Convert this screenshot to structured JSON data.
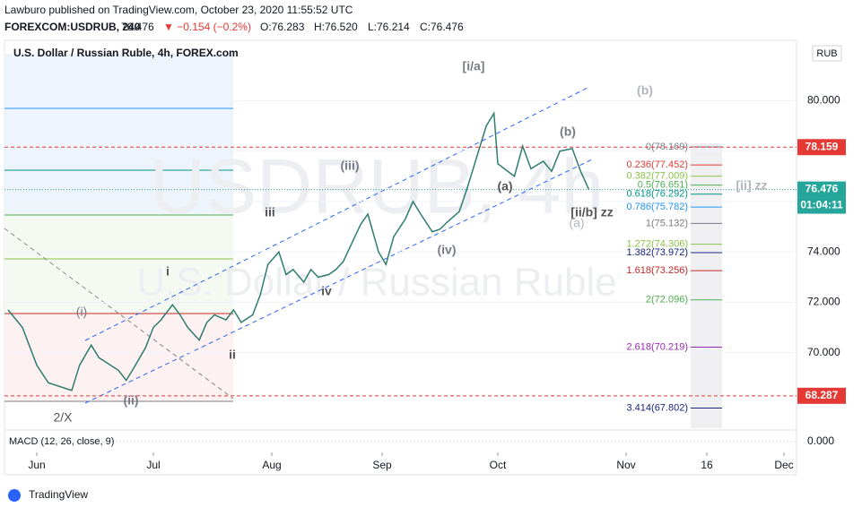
{
  "header": {
    "author": "Lawburo published on TradingView.com, October 23, 2020 11:55:52 UTC",
    "symbol": "FOREXCOM:USDRUB, 240",
    "last": "76.476",
    "change": "▼ −0.154 (−0.2%)",
    "open": "O:76.283",
    "high": "H:76.520",
    "low": "L:76.214",
    "close": "C:76.476"
  },
  "footer": {
    "brand": "TradingView"
  },
  "chart_data": {
    "type": "line",
    "title": "U.S. Dollar / Russian Ruble, 4h, FOREX.com",
    "watermark": "USDRUB, 4h",
    "watermark_sub": "U.S. Dollar / Russian Ruble",
    "currency": "RUB",
    "x": [
      "2020-05-24",
      "2020-05-28",
      "2020-06-01",
      "2020-06-04",
      "2020-06-08",
      "2020-06-10",
      "2020-06-12",
      "2020-06-15",
      "2020-06-17",
      "2020-06-19",
      "2020-06-22",
      "2020-06-24",
      "2020-06-26",
      "2020-06-29",
      "2020-07-01",
      "2020-07-03",
      "2020-07-06",
      "2020-07-08",
      "2020-07-10",
      "2020-07-13",
      "2020-07-15",
      "2020-07-17",
      "2020-07-20",
      "2020-07-22",
      "2020-07-24",
      "2020-07-27",
      "2020-07-29",
      "2020-07-31",
      "2020-08-03",
      "2020-08-05",
      "2020-08-07",
      "2020-08-10",
      "2020-08-12",
      "2020-08-14",
      "2020-08-17",
      "2020-08-19",
      "2020-08-21",
      "2020-08-24",
      "2020-08-26",
      "2020-08-28",
      "2020-08-31",
      "2020-09-02",
      "2020-09-04",
      "2020-09-07",
      "2020-09-09",
      "2020-09-11",
      "2020-09-14",
      "2020-09-16",
      "2020-09-18",
      "2020-09-21",
      "2020-09-23",
      "2020-09-25",
      "2020-09-28",
      "2020-09-30",
      "2020-10-01",
      "2020-10-05",
      "2020-10-07",
      "2020-10-09",
      "2020-10-12",
      "2020-10-14",
      "2020-10-16",
      "2020-10-19",
      "2020-10-21",
      "2020-10-23"
    ],
    "series": [
      {
        "name": "USDRUB",
        "color": "#2e7d6e",
        "values": [
          71.7,
          71.0,
          69.5,
          68.8,
          68.6,
          68.5,
          69.5,
          70.3,
          69.8,
          69.6,
          69.3,
          68.9,
          69.4,
          70.2,
          71.0,
          71.3,
          71.9,
          71.5,
          71.0,
          70.5,
          71.2,
          71.5,
          71.3,
          71.7,
          71.2,
          71.5,
          72.3,
          73.5,
          74.0,
          73.1,
          73.3,
          72.8,
          73.3,
          73.0,
          73.1,
          73.3,
          73.6,
          74.5,
          75.1,
          75.5,
          74.0,
          73.5,
          74.6,
          75.3,
          76.0,
          75.5,
          74.8,
          74.9,
          75.2,
          75.6,
          76.5,
          77.5,
          79.0,
          79.5,
          77.5,
          77.0,
          78.2,
          77.3,
          77.6,
          77.2,
          78.0,
          78.1,
          77.2,
          76.476
        ]
      }
    ],
    "xlim": [
      "2020-05-23",
      "2020-12-04"
    ],
    "xticks": [
      {
        "value": "2020-06-01",
        "label": "Jun"
      },
      {
        "value": "2020-07-01",
        "label": "Jul"
      },
      {
        "value": "2020-08-01",
        "label": "Aug"
      },
      {
        "value": "2020-09-01",
        "label": "Sep"
      },
      {
        "value": "2020-10-01",
        "label": "Oct"
      },
      {
        "value": "2020-11-01",
        "label": "Nov"
      },
      {
        "value": "2020-11-16",
        "label": "16"
      },
      {
        "value": "2020-12-01",
        "label": "Dec"
      }
    ],
    "ylim": [
      67,
      82.4
    ],
    "yticks": [
      {
        "value": 70,
        "label": "70.000"
      },
      {
        "value": 72,
        "label": "72.000"
      },
      {
        "value": 74,
        "label": "74.000"
      },
      {
        "value": 76,
        "label": "76.000"
      },
      {
        "value": 78,
        "label": "78.000"
      },
      {
        "value": 80,
        "label": "80.000"
      }
    ],
    "price_lines": [
      {
        "value": 78.159,
        "color": "#e53935"
      },
      {
        "value": 68.287,
        "color": "#e53935"
      },
      {
        "value": 76.476,
        "color": "#26a69a"
      }
    ],
    "countdown": "01:04:11",
    "fib_levels": [
      {
        "label": "0(78.169)",
        "value": 78.169,
        "color": "#787b86"
      },
      {
        "label": "0.236(77.452)",
        "value": 77.452,
        "color": "#e53935"
      },
      {
        "label": "0.382(77.009)",
        "value": 77.009,
        "color": "#8bc34a"
      },
      {
        "label": "0.5(76.651)",
        "value": 76.651,
        "color": "#4caf50"
      },
      {
        "label": "0.618(76.292)",
        "value": 76.292,
        "color": "#009688"
      },
      {
        "label": "0.786(75.782)",
        "value": 75.782,
        "color": "#2196f3"
      },
      {
        "label": "1(75.132)",
        "value": 75.132,
        "color": "#787b86"
      },
      {
        "label": "1.272(74.306)",
        "value": 74.306,
        "color": "#8bc34a"
      },
      {
        "label": "1.382(73.972)",
        "value": 73.972,
        "color": "#1a237e"
      },
      {
        "label": "1.618(73.256)",
        "value": 73.256,
        "color": "#c62828"
      },
      {
        "label": "2(72.096)",
        "value": 72.096,
        "color": "#4caf50"
      },
      {
        "label": "2.618(70.219)",
        "value": 70.219,
        "color": "#9c27b0"
      },
      {
        "label": "3.414(67.802)",
        "value": 67.802,
        "color": "#1a237e"
      }
    ],
    "annotations": [
      "[i/a]",
      "(b)",
      "(iii)",
      "iii",
      "i",
      "(i)",
      "ii",
      "(ii)",
      "2/X",
      "iv",
      "(iv)",
      "(a)",
      "[ii/b] zz",
      "(a)",
      "(b)",
      "[ii] zz"
    ],
    "macd": {
      "title": "MACD (12, 26, close, 9)",
      "zero_label": "0.000"
    }
  }
}
